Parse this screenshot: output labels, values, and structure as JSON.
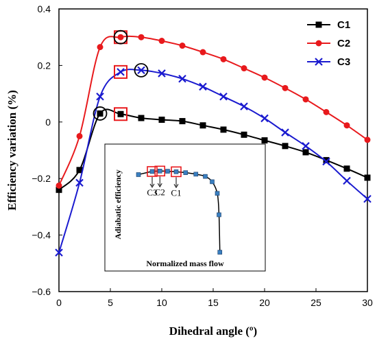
{
  "chart_data": [
    {
      "type": "line",
      "title": "",
      "xlabel": "Dihedral angle (º)",
      "ylabel": "Efficiency variation (%)",
      "xlim": [
        0,
        30
      ],
      "ylim": [
        -0.6,
        0.4
      ],
      "x_ticks": [
        0,
        5,
        10,
        15,
        20,
        25,
        30
      ],
      "y_ticks": [
        0.4,
        0.2,
        0,
        -0.2,
        -0.4,
        -0.6
      ],
      "x_tick_labels": [
        "0",
        "5",
        "10",
        "15",
        "20",
        "25",
        "30"
      ],
      "y_tick_labels": [
        "0.4",
        "0.2",
        "0",
        "−0.2",
        "−0.4",
        "−0.6"
      ],
      "grid": false,
      "legend_position": "top-right",
      "series": [
        {
          "name": "C1",
          "color": "#000000",
          "marker": "square",
          "x": [
            0,
            2,
            4,
            6,
            8,
            10,
            12,
            14,
            16,
            18,
            20,
            22,
            24,
            26,
            28,
            30
          ],
          "y": [
            -0.24,
            -0.17,
            0.03,
            0.028,
            0.014,
            0.008,
            0.003,
            -0.012,
            -0.027,
            -0.045,
            -0.065,
            -0.085,
            -0.107,
            -0.135,
            -0.165,
            -0.197
          ]
        },
        {
          "name": "C2",
          "color": "#e8191c",
          "marker": "circle",
          "x": [
            0,
            2,
            4,
            6,
            8,
            10,
            12,
            14,
            16,
            18,
            20,
            22,
            24,
            26,
            28,
            30
          ],
          "y": [
            -0.225,
            -0.05,
            0.265,
            0.3,
            0.3,
            0.287,
            0.27,
            0.247,
            0.222,
            0.19,
            0.157,
            0.12,
            0.08,
            0.035,
            -0.012,
            -0.063
          ]
        },
        {
          "name": "C3",
          "color": "#1a1acf",
          "marker": "x",
          "x": [
            0,
            2,
            4,
            6,
            8,
            10,
            12,
            14,
            16,
            18,
            20,
            22,
            24,
            26,
            28,
            30
          ],
          "y": [
            -0.462,
            -0.215,
            0.09,
            0.177,
            0.183,
            0.172,
            0.153,
            0.125,
            0.09,
            0.055,
            0.013,
            -0.037,
            -0.085,
            -0.14,
            -0.208,
            -0.272
          ]
        }
      ],
      "annotations": [
        {
          "shape": "square",
          "color": "#e8191c",
          "x": 6,
          "y": 0.3
        },
        {
          "shape": "circle",
          "color": "#000000",
          "x": 6,
          "y": 0.3
        },
        {
          "shape": "square",
          "color": "#e8191c",
          "x": 6,
          "y": 0.177
        },
        {
          "shape": "circle",
          "color": "#000000",
          "x": 8,
          "y": 0.183
        },
        {
          "shape": "square",
          "color": "#e8191c",
          "x": 6,
          "y": 0.028
        },
        {
          "shape": "circle",
          "color": "#000000",
          "x": 4,
          "y": 0.03
        }
      ]
    },
    {
      "type": "line",
      "title": "",
      "xlabel": "Normalized mass flow",
      "ylabel": "Adiabatic efficiency",
      "grid": false,
      "axes_labeled_with_values": false,
      "series": [
        {
          "name": "",
          "color": "#000000",
          "marker_color": "#3a7fc0",
          "marker": "square",
          "x": [
            0.0,
            0.16,
            0.25,
            0.34,
            0.44,
            0.55,
            0.67,
            0.78,
            0.86,
            0.92,
            0.94,
            0.95
          ],
          "y": [
            0.95,
            0.985,
            0.99,
            0.988,
            0.982,
            0.972,
            0.955,
            0.93,
            0.87,
            0.74,
            0.5,
            0.08
          ]
        }
      ],
      "annotations": [
        {
          "label": "C3",
          "x": 0.16,
          "y": 0.985,
          "boxed": true
        },
        {
          "label": "C2",
          "x": 0.25,
          "y": 0.99,
          "boxed": true
        },
        {
          "label": "C1",
          "x": 0.44,
          "y": 0.982,
          "boxed": true
        }
      ]
    }
  ]
}
